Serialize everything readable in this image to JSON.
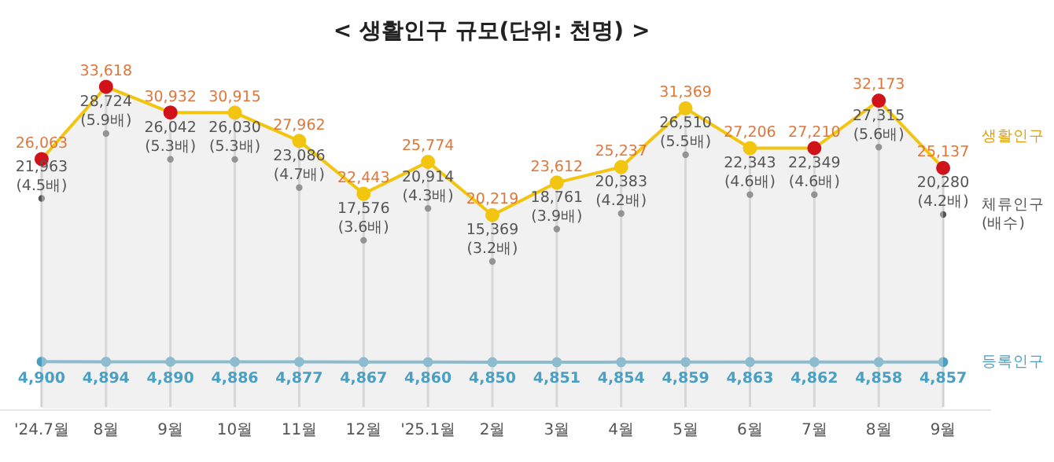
{
  "chart_data": {
    "type": "line",
    "title": "< 생활인구 규모(단위: 천명) >",
    "categories": [
      "'24.7월",
      "8월",
      "9월",
      "10월",
      "11월",
      "12월",
      "'25.1월",
      "2월",
      "3월",
      "4월",
      "5월",
      "6월",
      "7월",
      "8월",
      "9월"
    ],
    "legend": false,
    "grid": "x",
    "tick_labels": "x",
    "series": [
      {
        "name": "생활인구",
        "type": "area",
        "color": "#f2c511",
        "colors": [
          "#d0121b",
          "#d0121b",
          "#d0121b",
          "#f2c511",
          "#f2c511",
          "#f2c511",
          "#f2c511",
          "#f2c511",
          "#f2c511",
          "#f2c511",
          "#f2c511",
          "#f2c511",
          "#d0121b",
          "#d0121b",
          "#d0121b"
        ],
        "marker": "circle",
        "values": [
          26063,
          33618,
          30932,
          30915,
          27962,
          22443,
          25774,
          20219,
          23612,
          25237,
          31369,
          27206,
          27210,
          32173,
          25137
        ],
        "value_labels": [
          "26,063",
          "33,618",
          "30,932",
          "30,915",
          "27,962",
          "22,443",
          "25,774",
          "20,219",
          "23,612",
          "25,237",
          "31,369",
          "27,206",
          "27,210",
          "32,173",
          "25,137"
        ]
      },
      {
        "name": "체류인구 (배수)",
        "type": "scatter",
        "color": "#555555",
        "marker": "circle",
        "values": [
          21963,
          28724,
          26042,
          26030,
          23086,
          17576,
          20914,
          15369,
          18761,
          20383,
          26510,
          22343,
          22349,
          27315,
          20280
        ],
        "value_labels": [
          "21,963 (4.5배)",
          "28,724 (5.9배)",
          "26,042 (5.3배)",
          "26,030 (5.3배)",
          "23,086 (4.7배)",
          "17,576 (3.6배)",
          "20,914 (4.3배)",
          "15,369 (3.2배)",
          "18,761 (3.9배)",
          "20,383 (4.2배)",
          "26,510 (5.5배)",
          "22,343 (4.6배)",
          "22,349 (4.6배)",
          "27,315 (5.6배)",
          "20,280 (4.2배)"
        ]
      },
      {
        "name": "등록인구",
        "color": "#4a9fc2",
        "marker": "circle",
        "values": [
          4900,
          4894,
          4890,
          4886,
          4877,
          4867,
          4860,
          4850,
          4851,
          4854,
          4859,
          4863,
          4862,
          4858,
          4857
        ],
        "value_labels": [
          "4,900",
          "4,894",
          "4,890",
          "4,886",
          "4,877",
          "4,867",
          "4,860",
          "4,850",
          "4,851",
          "4,854",
          "4,859",
          "4,863",
          "4,862",
          "4,858",
          "4,857"
        ]
      }
    ]
  }
}
